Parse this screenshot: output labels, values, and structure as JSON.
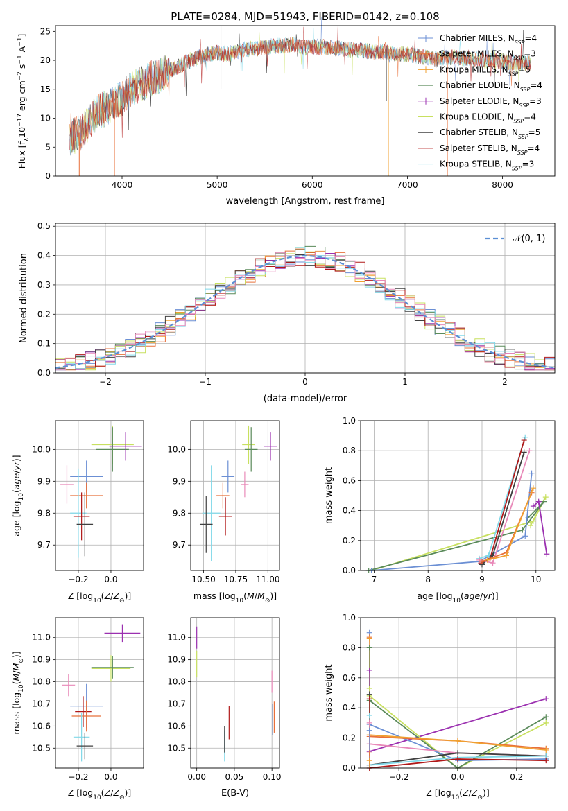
{
  "figure_title": "PLATE=0284, MJD=51943, FIBERID=0142, z=0.108",
  "colors": {
    "Chabrier MILES": "#6b8fd4",
    "Salpeter MILES": "#e8703a",
    "Kroupa MILES": "#f0a030",
    "Chabrier ELODIE": "#5a8a5a",
    "Salpeter ELODIE": "#9b30b0",
    "Kroupa ELODIE": "#c8e060",
    "Chabrier STELIB": "#404040",
    "Salpeter STELIB": "#b01818",
    "Kroupa STELIB": "#80d8e8",
    "pink": "#e888b8",
    "gaussian": "#5b8fd4"
  },
  "chart_data": [
    {
      "id": "spectrum",
      "type": "line",
      "xlabel": "wavelength [Angstrom, rest frame]",
      "ylabel": "Flux [fλ10⁻¹⁷ erg cm⁻² s⁻¹ A⁻¹]",
      "xlim": [
        3300,
        8550
      ],
      "ylim": [
        0,
        26
      ],
      "xticks": [
        4000,
        5000,
        6000,
        7000,
        8000
      ],
      "yticks": [
        0,
        5,
        10,
        15,
        20,
        25
      ],
      "grid": false,
      "legend_position": "top-right",
      "legend": [
        {
          "name": "Chabrier MILES",
          "label": "Chabrier MILES, N",
          "n": "4",
          "marker": "+"
        },
        {
          "name": "Salpeter MILES",
          "label": "Salpeter MILES, N",
          "n": "3",
          "marker": "+"
        },
        {
          "name": "Kroupa MILES",
          "label": "Kroupa MILES, N",
          "n": "5",
          "marker": "+"
        },
        {
          "name": "Chabrier ELODIE",
          "label": "Chabrier ELODIE, N",
          "n": "4",
          "marker": ""
        },
        {
          "name": "Salpeter ELODIE",
          "label": "Salpeter ELODIE, N",
          "n": "3",
          "marker": "+"
        },
        {
          "name": "Kroupa ELODIE",
          "label": "Kroupa ELODIE, N",
          "n": "4",
          "marker": ""
        },
        {
          "name": "Chabrier STELIB",
          "label": "Chabrier STELIB, N",
          "n": "5",
          "marker": ""
        },
        {
          "name": "Salpeter STELIB",
          "label": "Salpeter STELIB, N",
          "n": "4",
          "marker": ""
        },
        {
          "name": "Kroupa STELIB",
          "label": "Kroupa STELIB, N",
          "n": "3",
          "marker": ""
        }
      ],
      "legend_subscript": "SSP",
      "continuum": [
        [
          3450,
          6.5
        ],
        [
          3600,
          8.0
        ],
        [
          3700,
          10.5
        ],
        [
          3800,
          11.5
        ],
        [
          3900,
          12.5
        ],
        [
          4000,
          13.5
        ],
        [
          4100,
          15.0
        ],
        [
          4200,
          16.0
        ],
        [
          4300,
          16.8
        ],
        [
          4400,
          17.5
        ],
        [
          4500,
          18.2
        ],
        [
          4600,
          19.0
        ],
        [
          4700,
          19.8
        ],
        [
          4800,
          20.5
        ],
        [
          4900,
          21.0
        ],
        [
          5000,
          21.3
        ],
        [
          5100,
          21.0
        ],
        [
          5200,
          21.5
        ],
        [
          5300,
          22.0
        ],
        [
          5400,
          22.0
        ],
        [
          5500,
          22.3
        ],
        [
          5600,
          22.5
        ],
        [
          5700,
          22.5
        ],
        [
          5800,
          22.8
        ],
        [
          5900,
          22.2
        ],
        [
          6000,
          22.3
        ],
        [
          6100,
          22.3
        ],
        [
          6200,
          22.2
        ],
        [
          6300,
          22.0
        ],
        [
          6400,
          21.8
        ],
        [
          6500,
          21.8
        ],
        [
          6600,
          21.5
        ],
        [
          6700,
          21.5
        ],
        [
          6800,
          21.3
        ],
        [
          6900,
          21.2
        ],
        [
          7000,
          21.0
        ],
        [
          7100,
          20.8
        ],
        [
          7200,
          20.5
        ],
        [
          7300,
          20.3
        ],
        [
          7400,
          20.5
        ],
        [
          7500,
          20.5
        ],
        [
          7600,
          20.3
        ],
        [
          7700,
          20.3
        ],
        [
          7800,
          20.0
        ],
        [
          7900,
          20.0
        ],
        [
          8000,
          19.8
        ],
        [
          8100,
          19.7
        ],
        [
          8200,
          19.6
        ],
        [
          8300,
          19.5
        ]
      ],
      "dips": [
        [
          3550,
          0
        ],
        [
          3920,
          0
        ],
        [
          6800,
          0
        ],
        [
          7420,
          0
        ]
      ]
    },
    {
      "id": "residuals",
      "type": "histogram",
      "xlabel": "(data-model)/error",
      "ylabel": "Normed distribution",
      "xlim": [
        -2.5,
        2.5
      ],
      "ylim": [
        0,
        0.51
      ],
      "xticks": [
        -2,
        -1,
        0,
        1,
        2
      ],
      "yticks": [
        0.0,
        0.1,
        0.2,
        0.3,
        0.4,
        0.5
      ],
      "grid": true,
      "legend_label": "𝒩(0, 1)",
      "gaussian": {
        "mean": 0,
        "sigma": 1
      },
      "bin_width": 0.1
    },
    {
      "id": "age_vs_Z",
      "type": "errorbar",
      "xlabel": "Z [log10(Z/Z⊙)]",
      "ylabel": "age  [log10(age/yr)]",
      "xlim": [
        -0.34,
        0.2
      ],
      "ylim": [
        9.62,
        10.09
      ],
      "xticks": [
        -0.2,
        0.0
      ],
      "yticks": [
        9.7,
        9.8,
        9.9,
        10.0
      ],
      "points": [
        {
          "c": "Chabrier MILES",
          "x": -0.15,
          "xe": 0.1,
          "y": 9.915,
          "ye": 0.05
        },
        {
          "c": "pink",
          "x": -0.27,
          "xe": 0.04,
          "y": 9.89,
          "ye": 0.06
        },
        {
          "c": "Salpeter MILES",
          "x": -0.15,
          "xe": 0.1,
          "y": 9.855,
          "ye": 0.04
        },
        {
          "c": "Kroupa STELIB",
          "x": -0.2,
          "xe": 0.05,
          "y": 9.8,
          "ye": 0.14
        },
        {
          "c": "Salpeter STELIB",
          "x": -0.18,
          "xe": 0.05,
          "y": 9.79,
          "ye": 0.075
        },
        {
          "c": "Chabrier STELIB",
          "x": -0.16,
          "xe": 0.05,
          "y": 9.765,
          "ye": 0.1
        },
        {
          "c": "Kroupa ELODIE",
          "x": 0.01,
          "xe": 0.13,
          "y": 10.015,
          "ye": 0.06
        },
        {
          "c": "Chabrier ELODIE",
          "x": 0.01,
          "xe": 0.1,
          "y": 10.0,
          "ye": 0.07
        },
        {
          "c": "Salpeter ELODIE",
          "x": 0.09,
          "xe": 0.1,
          "y": 10.01,
          "ye": 0.045
        }
      ]
    },
    {
      "id": "age_vs_mass",
      "type": "errorbar",
      "xlabel": "mass [log10(M/M⊙)]",
      "ylabel": "",
      "xlim": [
        10.4,
        11.09
      ],
      "ylim": [
        9.62,
        10.09
      ],
      "xticks": [
        10.5,
        10.75,
        11.0
      ],
      "yticks": [
        9.7,
        9.8,
        9.9,
        10.0
      ],
      "points": [
        {
          "c": "Chabrier MILES",
          "x": 10.69,
          "xe": 0.05,
          "y": 9.915,
          "ye": 0.05
        },
        {
          "c": "pink",
          "x": 10.82,
          "xe": 0.03,
          "y": 9.89,
          "ye": 0.04
        },
        {
          "c": "Salpeter MILES",
          "x": 10.65,
          "xe": 0.05,
          "y": 9.855,
          "ye": 0.04
        },
        {
          "c": "Kroupa STELIB",
          "x": 10.56,
          "xe": 0.07,
          "y": 9.8,
          "ye": 0.15
        },
        {
          "c": "Salpeter STELIB",
          "x": 10.67,
          "xe": 0.05,
          "y": 9.79,
          "ye": 0.06
        },
        {
          "c": "Chabrier STELIB",
          "x": 10.52,
          "xe": 0.05,
          "y": 9.765,
          "ye": 0.09
        },
        {
          "c": "Kroupa ELODIE",
          "x": 10.85,
          "xe": 0.05,
          "y": 10.015,
          "ye": 0.06
        },
        {
          "c": "Chabrier ELODIE",
          "x": 10.87,
          "xe": 0.05,
          "y": 10.0,
          "ye": 0.07
        },
        {
          "c": "Salpeter ELODIE",
          "x": 11.02,
          "xe": 0.05,
          "y": 10.01,
          "ye": 0.045
        }
      ]
    },
    {
      "id": "weight_vs_age",
      "type": "line",
      "xlabel": "age  [log10(age/yr)]",
      "ylabel": "mass weight",
      "xlim": [
        6.75,
        10.35
      ],
      "ylim": [
        0,
        1.0
      ],
      "xticks": [
        7,
        8,
        9,
        10
      ],
      "yticks": [
        0.0,
        0.2,
        0.4,
        0.6,
        0.8,
        1.0
      ],
      "series": [
        {
          "c": "Kroupa ELODIE",
          "pts": [
            [
              6.95,
              0.0
            ],
            [
              9.95,
              0.33
            ],
            [
              10.18,
              0.49
            ],
            [
              9.9,
              0.3
            ]
          ]
        },
        {
          "c": "Chabrier ELODIE",
          "pts": [
            [
              6.9,
              0.0
            ],
            [
              9.75,
              0.27
            ],
            [
              10.15,
              0.46
            ],
            [
              9.85,
              0.35
            ]
          ]
        },
        {
          "c": "Chabrier MILES",
          "pts": [
            [
              6.95,
              0.0
            ],
            [
              8.95,
              0.06
            ],
            [
              9.8,
              0.23
            ],
            [
              9.92,
              0.65
            ]
          ]
        },
        {
          "c": "Kroupa STELIB",
          "pts": [
            [
              8.95,
              0.08
            ],
            [
              9.12,
              0.1
            ],
            [
              9.8,
              0.89
            ]
          ]
        },
        {
          "c": "Salpeter STELIB",
          "pts": [
            [
              8.98,
              0.05
            ],
            [
              9.15,
              0.08
            ],
            [
              9.78,
              0.87
            ]
          ]
        },
        {
          "c": "Chabrier STELIB",
          "pts": [
            [
              9.0,
              0.04
            ],
            [
              9.2,
              0.1
            ],
            [
              9.78,
              0.79
            ]
          ]
        },
        {
          "c": "pink",
          "pts": [
            [
              8.95,
              0.07
            ],
            [
              9.2,
              0.05
            ],
            [
              9.88,
              0.8
            ]
          ]
        },
        {
          "c": "Salpeter MILES",
          "pts": [
            [
              9.0,
              0.06
            ],
            [
              9.45,
              0.12
            ],
            [
              9.92,
              0.52
            ]
          ]
        },
        {
          "c": "Kroupa MILES",
          "pts": [
            [
              9.1,
              0.07
            ],
            [
              9.45,
              0.1
            ],
            [
              9.95,
              0.55
            ]
          ]
        },
        {
          "c": "Salpeter ELODIE",
          "pts": [
            [
              9.95,
              0.43
            ],
            [
              10.05,
              0.46
            ],
            [
              10.2,
              0.11
            ]
          ]
        }
      ]
    },
    {
      "id": "mass_vs_Z",
      "type": "errorbar",
      "xlabel": "Z [log10(Z/Z⊙)]",
      "ylabel": "mass [log10(M/M⊙)]",
      "xlim": [
        -0.34,
        0.2
      ],
      "ylim": [
        10.41,
        11.09
      ],
      "xticks": [
        -0.2,
        0.0
      ],
      "yticks": [
        10.5,
        10.6,
        10.7,
        10.8,
        10.9,
        11.0
      ],
      "points": [
        {
          "c": "Salpeter ELODIE",
          "x": 0.07,
          "xe": 0.11,
          "y": 11.02,
          "ye": 0.04
        },
        {
          "c": "Kroupa ELODIE",
          "x": 0.0,
          "xe": 0.12,
          "y": 10.86,
          "ye": 0.06
        },
        {
          "c": "Chabrier ELODIE",
          "x": 0.01,
          "xe": 0.13,
          "y": 10.865,
          "ye": 0.05
        },
        {
          "c": "pink",
          "x": -0.26,
          "xe": 0.04,
          "y": 10.785,
          "ye": 0.05
        },
        {
          "c": "Chabrier MILES",
          "x": -0.15,
          "xe": 0.1,
          "y": 10.69,
          "ye": 0.1
        },
        {
          "c": "Salpeter STELIB",
          "x": -0.17,
          "xe": 0.05,
          "y": 10.665,
          "ye": 0.07
        },
        {
          "c": "Salpeter MILES",
          "x": -0.15,
          "xe": 0.09,
          "y": 10.645,
          "ye": 0.07
        },
        {
          "c": "Kroupa STELIB",
          "x": -0.18,
          "xe": 0.05,
          "y": 10.55,
          "ye": 0.11
        },
        {
          "c": "Chabrier STELIB",
          "x": -0.16,
          "xe": 0.05,
          "y": 10.51,
          "ye": 0.06
        }
      ]
    },
    {
      "id": "mass_vs_ebv",
      "type": "errorbar",
      "xlabel": "E(B-V)",
      "ylabel": "",
      "xlim": [
        -0.008,
        0.11
      ],
      "ylim": [
        10.41,
        11.09
      ],
      "xticks": [
        0.0,
        0.05,
        0.1
      ],
      "yticks": [
        10.5,
        10.6,
        10.7,
        10.8,
        10.9,
        11.0
      ],
      "points": [
        {
          "c": "Salpeter ELODIE",
          "x": 0.0,
          "xe": 0,
          "y": 11.0,
          "ye": 0.05
        },
        {
          "c": "Kroupa ELODIE",
          "x": 0.0,
          "xe": 0,
          "y": 10.88,
          "ye": 0.06
        },
        {
          "c": "pink",
          "x": 0.1,
          "xe": 0,
          "y": 10.8,
          "ye": 0.05
        },
        {
          "c": "Salpeter MILES",
          "x": 0.103,
          "xe": 0,
          "y": 10.64,
          "ye": 0.07
        },
        {
          "c": "Chabrier MILES",
          "x": 0.101,
          "xe": 0,
          "y": 10.63,
          "ye": 0.07
        },
        {
          "c": "Salpeter STELIB",
          "x": 0.043,
          "xe": 0,
          "y": 10.615,
          "ye": 0.075
        },
        {
          "c": "Kroupa STELIB",
          "x": 0.037,
          "xe": 0,
          "y": 10.51,
          "ye": 0.07
        },
        {
          "c": "Chabrier STELIB",
          "x": 0.037,
          "xe": 0,
          "y": 10.54,
          "ye": 0.06
        }
      ]
    },
    {
      "id": "weight_vs_Z",
      "type": "line",
      "xlabel": "Z [log10(Z/Z⊙)]",
      "ylabel": "mass weight",
      "xlim": [
        -0.33,
        0.33
      ],
      "ylim": [
        0,
        1.0
      ],
      "xticks": [
        -0.2,
        0.0,
        0.2
      ],
      "yticks": [
        0.0,
        0.2,
        0.4,
        0.6,
        0.8,
        1.0
      ],
      "series": [
        {
          "c": "Salpeter ELODIE",
          "pts": [
            [
              -0.3,
              0.11
            ],
            [
              0.3,
              0.46
            ]
          ]
        },
        {
          "c": "Kroupa ELODIE",
          "pts": [
            [
              -0.3,
              0.48
            ],
            [
              0.0,
              0.0
            ],
            [
              0.3,
              0.3
            ]
          ]
        },
        {
          "c": "Chabrier ELODIE",
          "pts": [
            [
              -0.3,
              0.45
            ],
            [
              0.0,
              0.0
            ],
            [
              0.3,
              0.34
            ]
          ]
        },
        {
          "c": "Chabrier MILES",
          "pts": [
            [
              -0.3,
              0.29
            ],
            [
              0.0,
              0.05
            ],
            [
              0.3,
              0.06
            ]
          ]
        },
        {
          "c": "Salpeter MILES",
          "pts": [
            [
              -0.3,
              0.21
            ],
            [
              0.0,
              0.18
            ],
            [
              0.3,
              0.13
            ]
          ]
        },
        {
          "c": "Kroupa MILES",
          "pts": [
            [
              -0.3,
              0.22
            ],
            [
              0.0,
              0.18
            ],
            [
              0.3,
              0.12
            ]
          ]
        },
        {
          "c": "pink",
          "pts": [
            [
              -0.3,
              0.16
            ],
            [
              0.0,
              0.1
            ],
            [
              0.3,
              0.08
            ]
          ]
        },
        {
          "c": "Chabrier STELIB",
          "pts": [
            [
              -0.3,
              0.02
            ],
            [
              0.0,
              0.1
            ],
            [
              0.3,
              0.08
            ]
          ]
        },
        {
          "c": "Kroupa STELIB",
          "pts": [
            [
              -0.3,
              0.02
            ],
            [
              0.0,
              0.07
            ],
            [
              0.3,
              0.08
            ]
          ]
        },
        {
          "c": "Salpeter STELIB",
          "pts": [
            [
              -0.3,
              0.0
            ],
            [
              0.0,
              0.06
            ],
            [
              0.3,
              0.05
            ]
          ]
        }
      ],
      "stacked_markers_x": -0.3,
      "stacked_markers_y": [
        0.9,
        0.87,
        0.86,
        0.8,
        0.65,
        0.53,
        0.49,
        0.46,
        0.35,
        0.3,
        0.25,
        0.1,
        0.05
      ]
    }
  ]
}
